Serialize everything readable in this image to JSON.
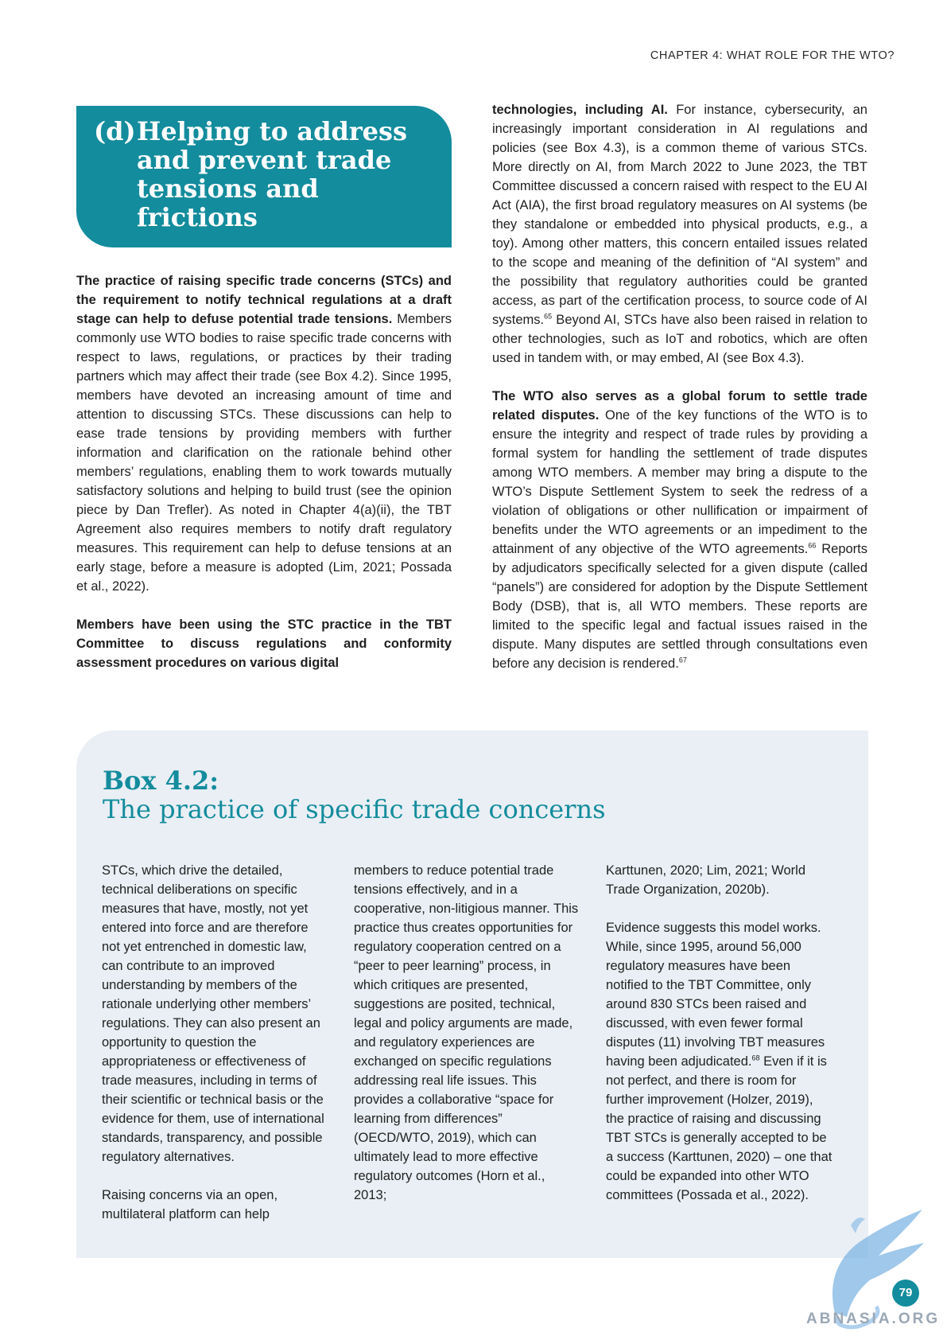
{
  "header": {
    "chapter": "CHAPTER 4: WHAT ROLE FOR THE WTO?"
  },
  "section": {
    "letter": "(d)",
    "title": "Helping to address and prevent trade tensions and frictions"
  },
  "left_column": {
    "p1_lead": "The practice of raising specific trade concerns (STCs) and the requirement to notify technical regulations at a draft stage can help to defuse potential trade tensions.",
    "p1_body": " Members commonly use WTO bodies to raise specific trade concerns with respect to laws, regulations, or practices by their trading partners which may affect their trade (see Box 4.2). Since 1995, members have devoted an increasing amount of time and attention to discussing STCs. These discussions can help to ease trade tensions by providing members with further information and clarification on the rationale behind other members’ regulations, enabling them to work towards mutually satisfactory solutions and helping to build trust (see the opinion piece by Dan Trefler). As noted in Chapter 4(a)(ii), the TBT Agreement also requires members to notify draft regulatory measures. This requirement can help to defuse tensions at an early stage, before a measure is adopted (Lim, 2021; Possada et al., 2022).",
    "p2_lead": "Members have been using the STC practice in the TBT Committee to discuss regulations and conformity assessment procedures on various digital"
  },
  "right_column": {
    "p1_lead": "technologies, including AI.",
    "p1_body_a": " For instance, cybersecurity, an increasingly important consideration in AI regulations and policies (see Box 4.3), is a common theme of various STCs. More directly on AI, from March 2022 to June 2023, the TBT Committee discussed a concern raised with respect to the EU AI Act (AIA), the first broad regulatory measures on AI systems (be they standalone or embedded into physical products, e.g., a toy). Among other matters, this concern entailed issues related to the scope and meaning of the definition of “AI system” and the possibility that regulatory authorities could be granted access, as part of the certification process, to source code of AI systems.",
    "fn65": "65",
    "p1_body_b": " Beyond AI, STCs have also been raised in relation to other technologies, such as IoT and robotics, which are often used in tandem with, or may embed, AI (see Box 4.3).",
    "p2_lead": "The WTO also serves as a global forum to settle trade related disputes.",
    "p2_body_a": " One of the key functions of the WTO is to ensure the integrity and respect of trade rules by providing a formal system for handling the settlement of trade disputes among WTO members. A member may bring a dispute to the WTO’s Dispute Settlement System to seek the redress of a violation of obligations or other nullification or impairment of benefits under the WTO agreements or an impediment to the attainment of any objective of the WTO agreements.",
    "fn66": "66",
    "p2_body_b": " Reports by adjudicators specifically selected for a given dispute (called “panels”) are considered for adoption by the Dispute Settlement Body (DSB), that is, all WTO members. These reports are limited to the specific legal and factual issues raised in the dispute. Many disputes are settled through consultations even before any decision is rendered.",
    "fn67": "67"
  },
  "box": {
    "label": "Box 4.2:",
    "title": "The practice of specific trade concerns",
    "col1_p1": "STCs, which drive the detailed, technical deliberations on specific measures that have, mostly, not yet entered into force and are therefore not yet entrenched in domestic law, can contribute to an improved understanding by members of the rationale underlying other members’ regulations. They can also present an opportunity to question the appropriateness or effectiveness of trade measures, including in terms of their scientific or technical basis or the evidence for them, use of international standards, transparency, and possible regulatory alternatives.",
    "col1_p2": "Raising concerns via an open, multilateral platform can help",
    "col2_p1": "members to reduce potential trade tensions effectively, and in a cooperative, non-litigious manner. This practice thus creates opportunities for regulatory cooperation centred on a “peer to peer learning” process, in which critiques are presented, suggestions are posited, technical, legal and policy arguments are made, and regulatory experiences are exchanged on specific regulations addressing real life issues. This provides a collaborative “space for learning from differences” (OECD/WTO, 2019), which can ultimately lead to more effective regulatory outcomes (Horn et al., 2013;",
    "col3_p1": "Karttunen, 2020; Lim, 2021; World Trade Organization, 2020b).",
    "col3_p2_a": "Evidence suggests this model works. While, since 1995, around 56,000 regulatory measures have been notified to the TBT Committee, only around 830 STCs been raised and discussed, with even fewer formal disputes (11) involving TBT measures having been adjudicated.",
    "fn68": "68",
    "col3_p2_b": " Even if it is not perfect, and there is room for further improvement (Holzer, 2019), the practice of raising and discussing TBT STCs is generally accepted to be a success (Karttunen, 2020) – one that could be expanded into other WTO committees (Possada et al., 2022)."
  },
  "footer": {
    "page_number": "79",
    "watermark": "ABNASIA.ORG"
  },
  "colors": {
    "accent": "#138c9d",
    "box_bg": "#e9eff4"
  }
}
